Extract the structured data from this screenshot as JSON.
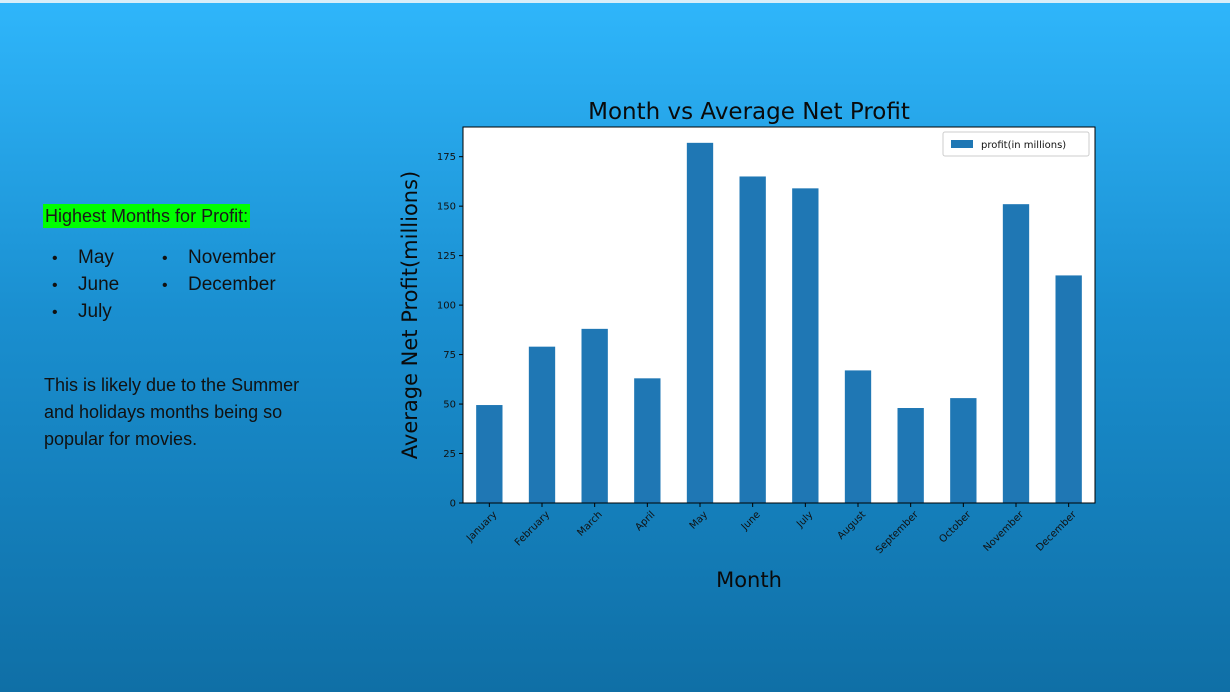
{
  "sidebar": {
    "heading": "Highest Months for Profit:",
    "col1": [
      "May",
      "June",
      "July"
    ],
    "col2": [
      "November",
      "December"
    ],
    "bullet": "•",
    "note": "This is likely due to the Summer and holidays months being so popular for movies."
  },
  "colors": {
    "bar": "#1f77b4",
    "highlight": "#00ff00",
    "background_top": "#2fb6fb",
    "background_bottom": "#0f6fa6"
  },
  "chart_data": {
    "type": "bar",
    "title": "Month vs Average Net Profit",
    "xlabel": "Month",
    "ylabel": "Average Net Profit(millions)",
    "categories": [
      "January",
      "February",
      "March",
      "April",
      "May",
      "June",
      "July",
      "August",
      "September",
      "October",
      "November",
      "December"
    ],
    "series": [
      {
        "name": "profit(in millions)",
        "values": [
          49.5,
          79,
          88,
          63,
          182,
          165,
          159,
          67,
          48,
          53,
          151,
          115
        ]
      }
    ],
    "ylim": [
      0,
      190
    ],
    "yticks": [
      0,
      25,
      50,
      75,
      100,
      125,
      150,
      175
    ],
    "grid": false,
    "legend": "top-right"
  }
}
